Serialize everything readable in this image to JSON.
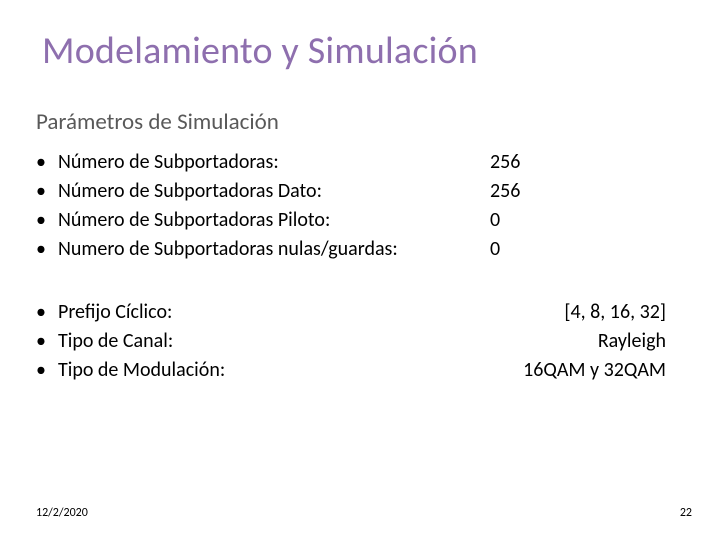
{
  "colors": {
    "title": "#8e6fae",
    "subtitle": "#595959",
    "body": "#000000",
    "background": "#ffffff"
  },
  "typography": {
    "title_fontsize": 38,
    "subtitle_fontsize": 23,
    "body_fontsize": 20,
    "footer_fontsize": 12,
    "font_family": "Calibri"
  },
  "title": "Modelamiento y Simulación",
  "subtitle": "Parámetros de Simulación",
  "group1": [
    {
      "label": "Número de Subportadoras:",
      "value": "256"
    },
    {
      "label": "Número de Subportadoras Dato:",
      "value": "256"
    },
    {
      "label": "Número de Subportadoras Piloto:",
      "value": "0"
    },
    {
      "label": "Numero de Subportadoras nulas/guardas:",
      "value": "0"
    }
  ],
  "group2": [
    {
      "label": "Prefijo Cíclico:",
      "value": "[4, 8, 16, 32]"
    },
    {
      "label": "Tipo de Canal:",
      "value": "Rayleigh"
    },
    {
      "label": "Tipo de Modulación:",
      "value": "16QAM y 32QAM"
    }
  ],
  "footer": {
    "date": "12/2/2020",
    "page": "22"
  }
}
